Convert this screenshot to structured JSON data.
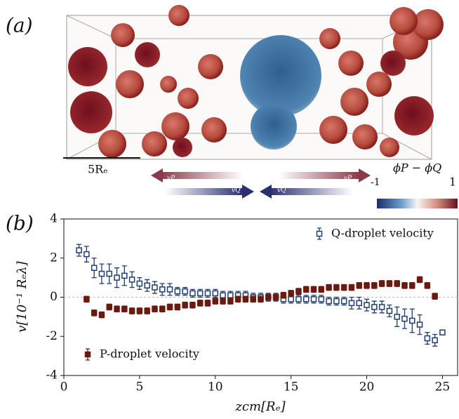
{
  "panel_a": {
    "label": "(a)",
    "scale_label": "5Rₑ",
    "colorbar_label": "ϕP − ϕQ",
    "colorbar_min": -1,
    "colorbar_max": 1,
    "arrows": [
      "vP",
      "vQ",
      "vP",
      "vQ"
    ]
  },
  "chart_data": {
    "type": "errorbar",
    "panel_label": "(b)",
    "xlabel": "zcm[Rₑ]",
    "ylabel": "v[10⁻¹ Rₑλ]",
    "x": [
      1,
      1.5,
      2,
      2.5,
      3,
      3.5,
      4,
      4.5,
      5,
      5.5,
      6,
      6.5,
      7,
      7.5,
      8,
      8.5,
      9,
      9.5,
      10,
      10.5,
      11,
      11.5,
      12,
      12.5,
      13,
      13.5,
      14,
      14.5,
      15,
      15.5,
      16,
      16.5,
      17,
      17.5,
      18,
      18.5,
      19,
      19.5,
      20,
      20.5,
      21,
      21.5,
      22,
      22.5,
      23,
      23.5,
      24,
      24.5,
      25
    ],
    "xlim": [
      0,
      26
    ],
    "ylim": [
      -4,
      4
    ],
    "xticks": [
      0,
      5,
      10,
      15,
      20,
      25
    ],
    "yticks": [
      -4,
      -2,
      0,
      2,
      4
    ],
    "hline": 0,
    "series": [
      {
        "name": "Q-droplet velocity",
        "color": "#1f3d6e",
        "marker": "open-square",
        "legend": "upper right",
        "values": [
          2.4,
          2.2,
          1.5,
          1.2,
          1.2,
          1.0,
          1.1,
          0.9,
          0.7,
          0.6,
          0.5,
          0.4,
          0.4,
          0.3,
          0.3,
          0.2,
          0.2,
          0.2,
          0.2,
          0.1,
          0.1,
          0.1,
          0.1,
          0.0,
          0.0,
          0.0,
          0.0,
          -0.1,
          -0.1,
          -0.1,
          -0.1,
          -0.1,
          -0.1,
          -0.2,
          -0.2,
          -0.2,
          -0.3,
          -0.3,
          -0.4,
          -0.5,
          -0.5,
          -0.7,
          -1.0,
          -1.1,
          -1.2,
          -1.4,
          -2.1,
          -2.2,
          -1.8
        ],
        "errors": [
          0.3,
          0.4,
          0.5,
          0.5,
          0.5,
          0.5,
          0.5,
          0.4,
          0.3,
          0.3,
          0.3,
          0.3,
          0.3,
          0.2,
          0.2,
          0.2,
          0.2,
          0.2,
          0.2,
          0.2,
          0.2,
          0.2,
          0.2,
          0.2,
          0.2,
          0.2,
          0.2,
          0.2,
          0.2,
          0.2,
          0.2,
          0.2,
          0.2,
          0.2,
          0.2,
          0.2,
          0.3,
          0.3,
          0.3,
          0.3,
          0.3,
          0.3,
          0.5,
          0.5,
          0.6,
          0.5,
          0.3,
          0.3,
          0.1
        ]
      },
      {
        "name": "P-droplet velocity",
        "color": "#6b1a10",
        "marker": "filled-square",
        "legend": "lower left",
        "values": [
          null,
          -0.1,
          -0.8,
          -0.9,
          -0.5,
          -0.6,
          -0.6,
          -0.7,
          -0.7,
          -0.7,
          -0.6,
          -0.6,
          -0.5,
          -0.5,
          -0.4,
          -0.4,
          -0.3,
          -0.3,
          -0.2,
          -0.2,
          -0.2,
          -0.1,
          -0.1,
          -0.1,
          -0.1,
          0.0,
          0.0,
          0.1,
          0.2,
          0.3,
          0.4,
          0.4,
          0.4,
          0.5,
          0.5,
          0.5,
          0.5,
          0.6,
          0.6,
          0.6,
          0.7,
          0.7,
          0.7,
          0.6,
          0.6,
          0.9,
          0.6,
          0.05,
          null
        ],
        "errors": [
          null,
          0.15,
          0.15,
          0.15,
          0.15,
          0.15,
          0.15,
          0.15,
          0.15,
          0.15,
          0.15,
          0.15,
          0.15,
          0.15,
          0.15,
          0.15,
          0.15,
          0.15,
          0.15,
          0.15,
          0.15,
          0.15,
          0.15,
          0.15,
          0.15,
          0.15,
          0.15,
          0.15,
          0.15,
          0.15,
          0.15,
          0.15,
          0.15,
          0.15,
          0.15,
          0.15,
          0.15,
          0.15,
          0.15,
          0.15,
          0.15,
          0.15,
          0.15,
          0.15,
          0.15,
          0.15,
          0.15,
          0.15,
          null
        ]
      }
    ]
  }
}
